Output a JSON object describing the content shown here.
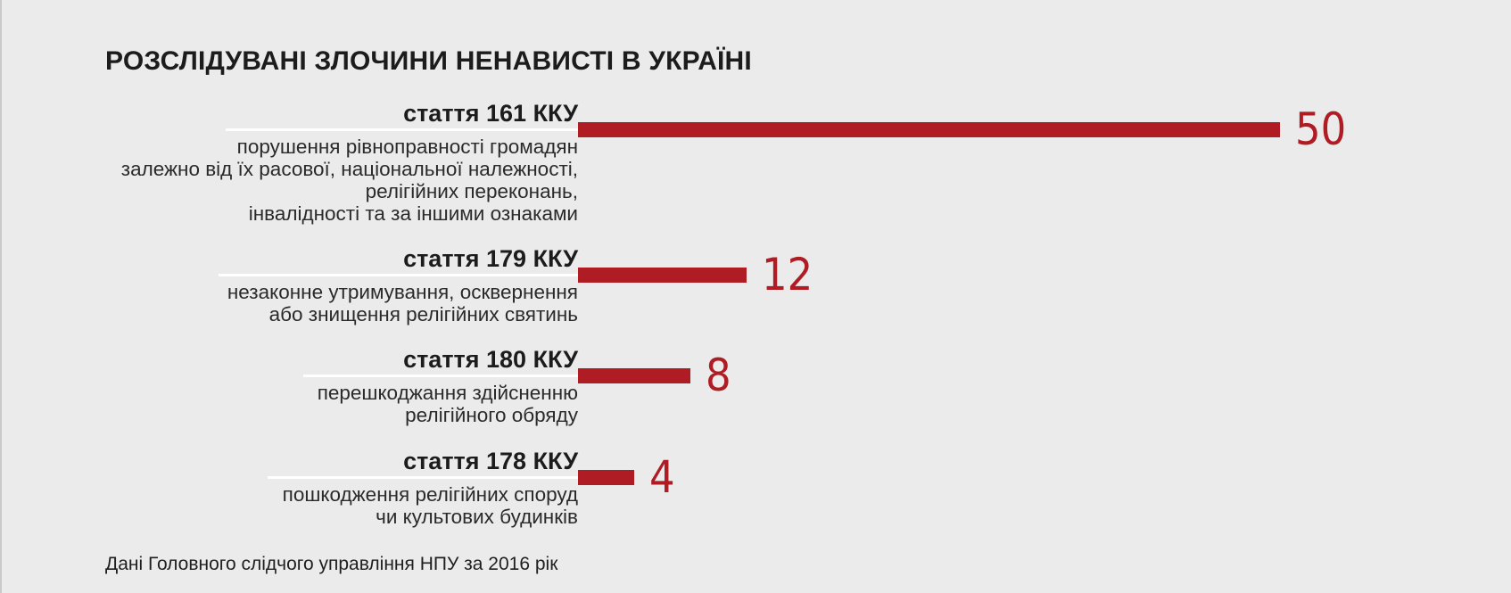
{
  "chart_data": {
    "type": "bar",
    "orientation": "horizontal",
    "title": "РОЗСЛІДУВАНІ ЗЛОЧИНИ НЕНАВИСТІ В УКРАЇНІ",
    "source": "Дані Головного слідчого управління НПУ за 2016 рік",
    "categories": [
      {
        "article": "стаття 161 ККУ",
        "description": [
          "порушення рівноправності громадян",
          "залежно від їх расової, національної належності,",
          "релігійних переконань,",
          "інвалідності та за іншими ознаками"
        ]
      },
      {
        "article": "стаття 179 ККУ",
        "description": [
          "незаконне утримування, осквернення",
          "або знищення релігійних святинь"
        ]
      },
      {
        "article": "стаття 180 ККУ",
        "description": [
          "перешкоджання здійсненню",
          "релігійного обряду"
        ]
      },
      {
        "article": "стаття 178 ККУ",
        "description": [
          "пошкодження релігійних споруд",
          "чи культових будинків"
        ]
      }
    ],
    "values": [
      50,
      12,
      8,
      4
    ],
    "value_labels": [
      "50",
      "12",
      "8",
      "4"
    ],
    "xlim": [
      0,
      50
    ],
    "grid": false,
    "legend": "none",
    "bar_color": "#b01c24",
    "label_color": "#b01c24"
  }
}
